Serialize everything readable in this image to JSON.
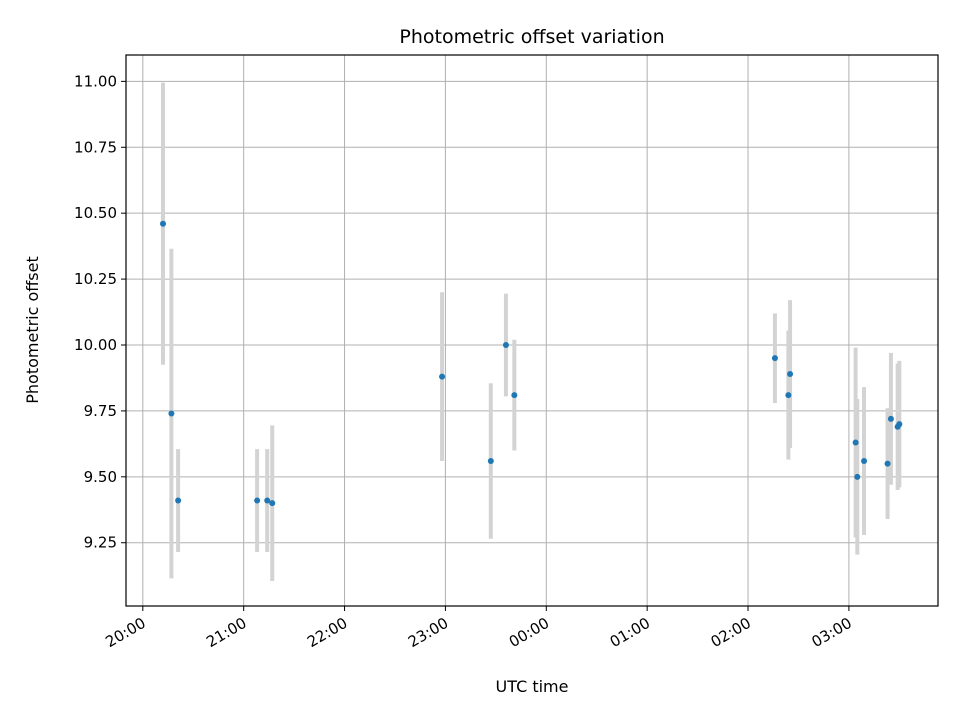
{
  "chart_data": {
    "type": "scatter",
    "title": "Photometric offset variation",
    "xlabel": "UTC time",
    "ylabel": "Photometric offset",
    "grid": true,
    "xlim": [
      "19:50",
      "03:53"
    ],
    "ylim": [
      9.01,
      11.1
    ],
    "x_ticks": [
      "20:00",
      "21:00",
      "22:00",
      "23:00",
      "00:00",
      "01:00",
      "02:00",
      "03:00"
    ],
    "y_ticks": [
      "9.25",
      "9.50",
      "9.75",
      "10.00",
      "10.25",
      "10.50",
      "10.75",
      "11.00"
    ],
    "colors": {
      "point": "#1f77b4",
      "errorbar": "#d3d3d3",
      "grid": "#b0b0b0"
    },
    "points": [
      {
        "x": "20:12",
        "y": 10.46,
        "yerr": 0.535
      },
      {
        "x": "20:17",
        "y": 9.74,
        "yerr": 0.625
      },
      {
        "x": "20:21",
        "y": 9.41,
        "yerr": 0.195
      },
      {
        "x": "21:08",
        "y": 9.41,
        "yerr": 0.195
      },
      {
        "x": "21:14",
        "y": 9.41,
        "yerr": 0.195
      },
      {
        "x": "21:17",
        "y": 9.4,
        "yerr": 0.295
      },
      {
        "x": "22:58",
        "y": 9.88,
        "yerr": 0.32
      },
      {
        "x": "23:27",
        "y": 9.56,
        "yerr": 0.295
      },
      {
        "x": "23:36",
        "y": 10.0,
        "yerr": 0.195
      },
      {
        "x": "23:41",
        "y": 9.81,
        "yerr": 0.21
      },
      {
        "x": "02:16",
        "y": 9.95,
        "yerr": 0.17
      },
      {
        "x": "02:24",
        "y": 9.81,
        "yerr": 0.245
      },
      {
        "x": "02:25",
        "y": 9.89,
        "yerr": 0.28
      },
      {
        "x": "03:04",
        "y": 9.63,
        "yerr": 0.36
      },
      {
        "x": "03:05",
        "y": 9.5,
        "yerr": 0.295
      },
      {
        "x": "03:09",
        "y": 9.56,
        "yerr": 0.28
      },
      {
        "x": "03:23",
        "y": 9.55,
        "yerr": 0.21
      },
      {
        "x": "03:25",
        "y": 9.72,
        "yerr": 0.25
      },
      {
        "x": "03:29",
        "y": 9.69,
        "yerr": 0.24
      },
      {
        "x": "03:30",
        "y": 9.7,
        "yerr": 0.24
      }
    ]
  }
}
